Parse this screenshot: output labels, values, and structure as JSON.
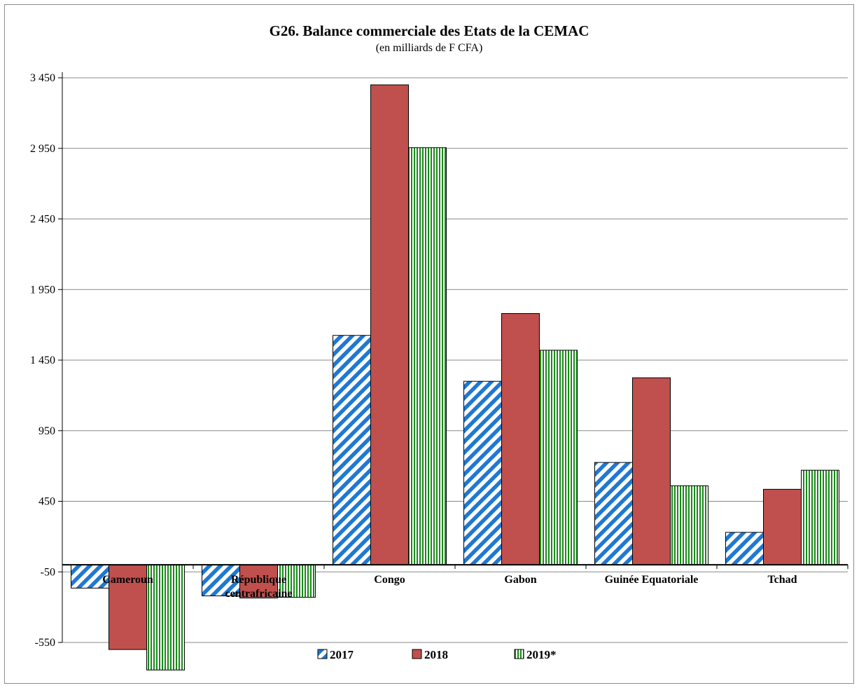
{
  "chart_data": {
    "type": "bar",
    "title": "G26. Balance commerciale des Etats de la CEMAC",
    "subtitle": "(en milliards de F CFA)",
    "xlabel": "",
    "ylabel": "",
    "ylim": [
      -550,
      3450
    ],
    "yticks": [
      -550,
      -50,
      450,
      950,
      1450,
      1950,
      2450,
      2950,
      3450
    ],
    "ytick_labels": [
      "-550",
      "-50",
      "450",
      "950",
      "1 450",
      "1 950",
      "2 450",
      "2 950",
      "3 450"
    ],
    "grid": true,
    "legend_position": "bottom",
    "categories": [
      [
        "Cameroun"
      ],
      [
        "République",
        "centrafricaine"
      ],
      [
        "Congo"
      ],
      [
        "Gabon"
      ],
      [
        "Guinée Equatoriale"
      ],
      [
        "Tchad"
      ]
    ],
    "series": [
      {
        "name": "2017",
        "pattern": "diagonal-stripes",
        "color": "#1f78d1",
        "values": [
          -165,
          -220,
          1625,
          1300,
          725,
          230
        ]
      },
      {
        "name": "2018",
        "pattern": "solid",
        "color": "#c0504d",
        "values": [
          -600,
          -235,
          3400,
          1780,
          1325,
          535
        ]
      },
      {
        "name": "2019*",
        "pattern": "vertical-stripes",
        "color": "#1a8a1a",
        "values": [
          -745,
          -230,
          2955,
          1520,
          560,
          670
        ]
      }
    ]
  }
}
